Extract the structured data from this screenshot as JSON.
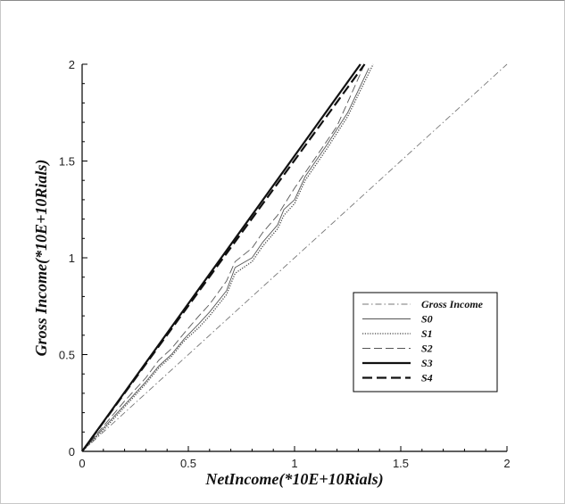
{
  "chart_data": {
    "type": "line",
    "xlabel": "NetIncome(*10E+10Rials)",
    "ylabel": "Gross Income(*10E+10Rials)",
    "xlim": [
      0,
      2
    ],
    "ylim": [
      0,
      2
    ],
    "x_ticks": [
      "0",
      "0.5",
      "1",
      "1.5",
      "2"
    ],
    "y_ticks": [
      "0",
      "0.5",
      "1",
      "1.5",
      "2"
    ],
    "grid": false,
    "legend_position": "right",
    "series": [
      {
        "name": "Gross Income",
        "style": "dash-dot",
        "color": "#777777",
        "x": [
          0,
          2
        ],
        "y": [
          0,
          2
        ]
      },
      {
        "name": "S0",
        "style": "solid-thin",
        "color": "#555555",
        "x": [
          0,
          0.1,
          0.2,
          0.25,
          0.3,
          0.36,
          0.42,
          0.48,
          0.55,
          0.6,
          0.68,
          0.72,
          0.8,
          0.85,
          0.92,
          0.95,
          1.0,
          1.05,
          1.15,
          1.25,
          1.35
        ],
        "y": [
          0,
          0.12,
          0.24,
          0.3,
          0.36,
          0.44,
          0.5,
          0.58,
          0.66,
          0.72,
          0.83,
          0.95,
          1.0,
          1.08,
          1.17,
          1.25,
          1.3,
          1.42,
          1.58,
          1.75,
          1.98
        ]
      },
      {
        "name": "S1",
        "style": "dotted",
        "color": "#444444",
        "x": [
          0,
          0.1,
          0.2,
          0.25,
          0.3,
          0.36,
          0.42,
          0.48,
          0.55,
          0.6,
          0.68,
          0.72,
          0.8,
          0.85,
          0.92,
          0.95,
          1.0,
          1.05,
          1.15,
          1.25,
          1.37
        ],
        "y": [
          0,
          0.11,
          0.23,
          0.29,
          0.35,
          0.43,
          0.49,
          0.57,
          0.64,
          0.7,
          0.81,
          0.92,
          0.98,
          1.06,
          1.15,
          1.22,
          1.28,
          1.4,
          1.56,
          1.73,
          2.0
        ]
      },
      {
        "name": "S2",
        "style": "dashed-thin",
        "color": "#555555",
        "x": [
          0,
          0.1,
          0.2,
          0.25,
          0.3,
          0.36,
          0.42,
          0.48,
          0.55,
          0.6,
          0.68,
          0.72,
          0.8,
          0.85,
          0.92,
          1.0,
          1.1,
          1.2,
          1.33
        ],
        "y": [
          0,
          0.13,
          0.26,
          0.32,
          0.38,
          0.47,
          0.53,
          0.61,
          0.7,
          0.76,
          0.88,
          0.98,
          1.05,
          1.13,
          1.22,
          1.36,
          1.52,
          1.68,
          2.0
        ]
      },
      {
        "name": "S3",
        "style": "solid-thick",
        "color": "#111111",
        "x": [
          0,
          1.31
        ],
        "y": [
          0,
          2.0
        ]
      },
      {
        "name": "S4",
        "style": "dashed-thick",
        "color": "#111111",
        "x": [
          0,
          1.33
        ],
        "y": [
          0,
          2.0
        ]
      }
    ]
  }
}
